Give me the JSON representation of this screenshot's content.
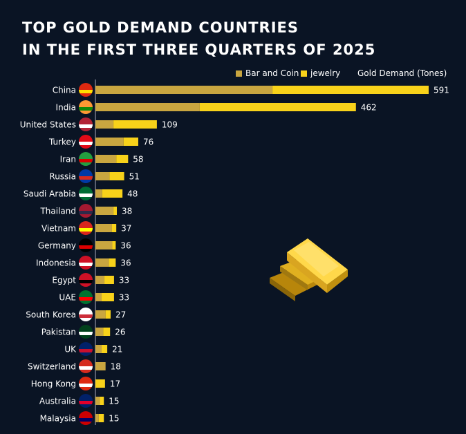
{
  "chart_data": {
    "type": "bar",
    "orientation": "horizontal",
    "stacked": true,
    "title": "TOP GOLD DEMAND COUNTRIES",
    "subtitle": "IN THE FIRST THREE QUARTERS OF 2025",
    "legend_title": "Gold Demand (Tones)",
    "legend_placement": "top-right",
    "grid": false,
    "categories": [
      "China",
      "India",
      "United States",
      "Turkey",
      "Iran",
      "Russia",
      "Saudi Arabia",
      "Thailand",
      "Vietnam",
      "Germany",
      "Indonesia",
      "Egypt",
      "UAE",
      "South Korea",
      "Pakistan",
      "UK",
      "Switzerland",
      "Hong Kong",
      "Australia",
      "Malaysia"
    ],
    "totals": [
      591,
      462,
      109,
      76,
      58,
      51,
      48,
      38,
      37,
      36,
      36,
      33,
      33,
      27,
      26,
      21,
      18,
      17,
      15,
      15
    ],
    "series": [
      {
        "name": "Bar and Coin",
        "color": "#c9a640",
        "values": [
          314,
          185,
          32,
          50,
          37,
          25,
          12,
          32,
          29,
          30,
          24,
          16,
          11,
          18,
          14,
          11,
          18,
          0,
          8,
          6
        ]
      },
      {
        "name": "jewelry",
        "color": "#f8d21a",
        "values": [
          277,
          277,
          77,
          26,
          21,
          26,
          36,
          6,
          8,
          6,
          12,
          17,
          22,
          9,
          12,
          10,
          0,
          17,
          7,
          9
        ]
      }
    ],
    "xlim": [
      0,
      600
    ]
  },
  "flags": {
    "China": [
      "#de2910",
      "#ffde00"
    ],
    "India": [
      "#ff9933",
      "#138808"
    ],
    "United States": [
      "#b22234",
      "#ffffff"
    ],
    "Turkey": [
      "#e30a17",
      "#ffffff"
    ],
    "Iran": [
      "#239f40",
      "#da0000"
    ],
    "Russia": [
      "#0039a6",
      "#d52b1e"
    ],
    "Saudi Arabia": [
      "#006c35",
      "#ffffff"
    ],
    "Thailand": [
      "#a51931",
      "#2d2a4a"
    ],
    "Vietnam": [
      "#da251d",
      "#ffff00"
    ],
    "Germany": [
      "#000000",
      "#dd0000"
    ],
    "Indonesia": [
      "#ce1126",
      "#ffffff"
    ],
    "Egypt": [
      "#ce1126",
      "#000000"
    ],
    "UAE": [
      "#00732f",
      "#ff0000"
    ],
    "South Korea": [
      "#ffffff",
      "#cd2e3a"
    ],
    "Pakistan": [
      "#01411c",
      "#ffffff"
    ],
    "UK": [
      "#012169",
      "#c8102e"
    ],
    "Switzerland": [
      "#d52b1e",
      "#ffffff"
    ],
    "Hong Kong": [
      "#de2910",
      "#ffffff"
    ],
    "Australia": [
      "#012169",
      "#e4002b"
    ],
    "Malaysia": [
      "#cc0001",
      "#010066"
    ]
  }
}
